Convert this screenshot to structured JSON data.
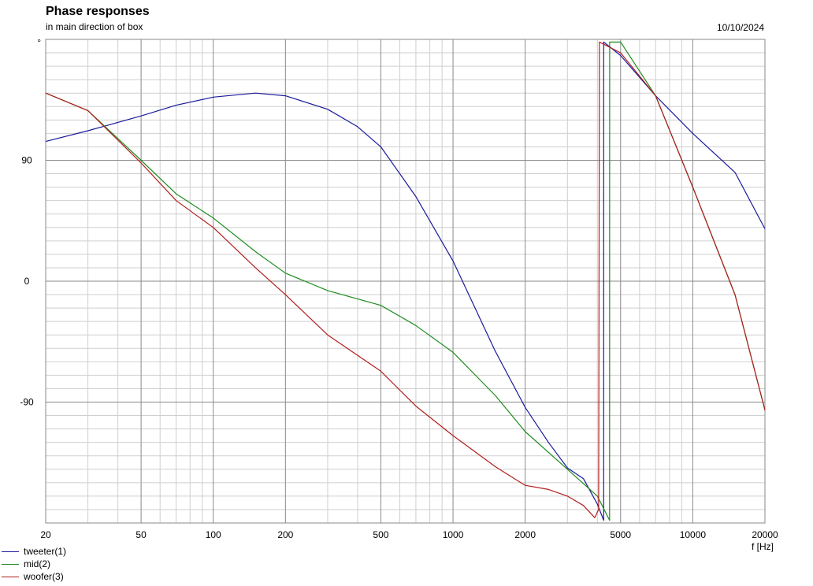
{
  "header": {
    "title": "Phase responses",
    "subtitle": "in main direction of box",
    "date": "10/10/2024"
  },
  "chart_data": {
    "type": "line",
    "title": "Phase responses",
    "subtitle": "in main direction of box",
    "xlabel": "f [Hz]",
    "ylabel": "°",
    "xscale": "log",
    "xlim": [
      20,
      20000
    ],
    "ylim": [
      -180,
      180
    ],
    "xticks": [
      20,
      50,
      100,
      200,
      500,
      1000,
      2000,
      5000,
      10000,
      20000
    ],
    "xtick_labels": [
      "20",
      "50",
      "100",
      "200",
      "500",
      "1000",
      "2000",
      "5000",
      "10000",
      "20000"
    ],
    "yticks": [
      90,
      0,
      -90
    ],
    "ytick_labels": [
      "90",
      "0",
      "-90"
    ],
    "grid": true,
    "legend_position": "bottom-left",
    "series": [
      {
        "name": "tweeter(1)",
        "color": "#1a1a9c",
        "points": [
          [
            20,
            104
          ],
          [
            30,
            112
          ],
          [
            50,
            123
          ],
          [
            70,
            131
          ],
          [
            100,
            137
          ],
          [
            150,
            140
          ],
          [
            200,
            138
          ],
          [
            300,
            128
          ],
          [
            400,
            115
          ],
          [
            500,
            100
          ],
          [
            700,
            63
          ],
          [
            1000,
            15
          ],
          [
            1500,
            -52
          ],
          [
            2000,
            -94
          ],
          [
            2500,
            -120
          ],
          [
            3000,
            -139
          ],
          [
            3500,
            -147
          ],
          [
            4000,
            -166
          ],
          [
            4250,
            -178
          ],
          [
            4251,
            178
          ],
          [
            5000,
            168
          ],
          [
            7000,
            138
          ],
          [
            10000,
            110
          ],
          [
            15000,
            81
          ],
          [
            20000,
            39
          ]
        ]
      },
      {
        "name": "mid(2)",
        "color": "#1e8c1e",
        "points": [
          [
            20,
            140
          ],
          [
            30,
            127
          ],
          [
            50,
            90
          ],
          [
            70,
            65
          ],
          [
            100,
            47
          ],
          [
            150,
            22
          ],
          [
            200,
            6
          ],
          [
            300,
            -7
          ],
          [
            500,
            -18
          ],
          [
            700,
            -33
          ],
          [
            1000,
            -53
          ],
          [
            1500,
            -85
          ],
          [
            2000,
            -112
          ],
          [
            3000,
            -140
          ],
          [
            4000,
            -160
          ],
          [
            4500,
            -178
          ],
          [
            4501,
            178
          ],
          [
            5000,
            178
          ],
          [
            7000,
            138
          ],
          [
            10000,
            70
          ],
          [
            15000,
            -10
          ],
          [
            20000,
            -96
          ]
        ]
      },
      {
        "name": "woofer(3)",
        "color": "#b01e1e",
        "points": [
          [
            20,
            140
          ],
          [
            30,
            127
          ],
          [
            50,
            88
          ],
          [
            70,
            60
          ],
          [
            100,
            40
          ],
          [
            150,
            10
          ],
          [
            200,
            -10
          ],
          [
            300,
            -40
          ],
          [
            500,
            -67
          ],
          [
            700,
            -93
          ],
          [
            1000,
            -115
          ],
          [
            1500,
            -138
          ],
          [
            2000,
            -152
          ],
          [
            2500,
            -155
          ],
          [
            3000,
            -160
          ],
          [
            3500,
            -167
          ],
          [
            3900,
            -176
          ],
          [
            4050,
            -170
          ],
          [
            4080,
            178
          ],
          [
            5000,
            170
          ],
          [
            7000,
            138
          ],
          [
            10000,
            70
          ],
          [
            15000,
            -10
          ],
          [
            20000,
            -96
          ]
        ]
      }
    ]
  }
}
